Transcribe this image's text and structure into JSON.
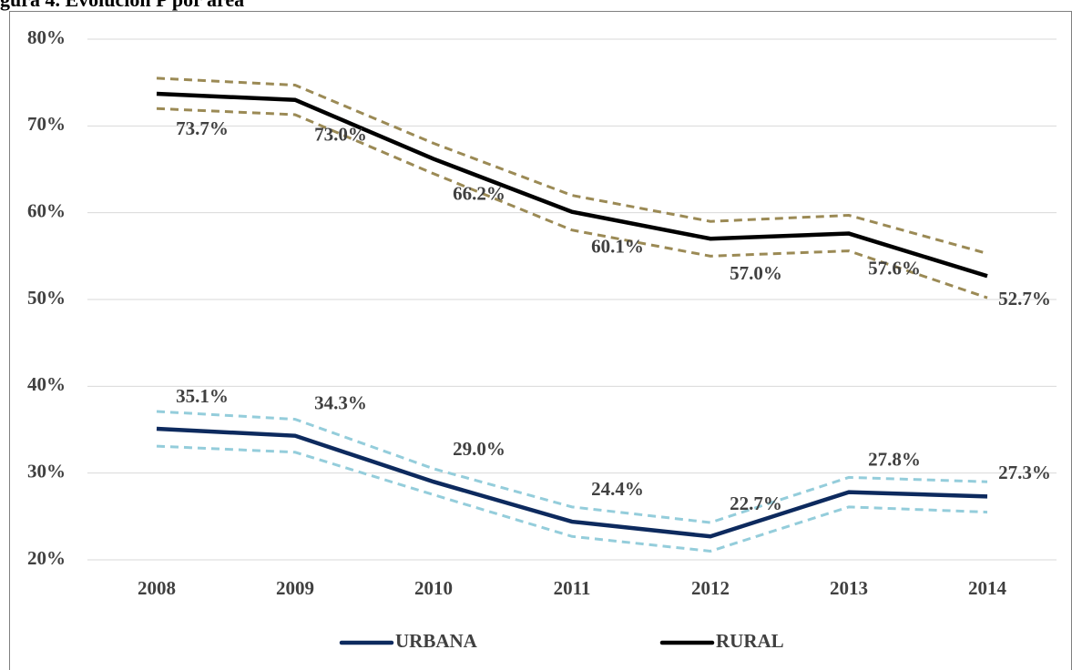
{
  "chart_data": {
    "type": "line",
    "title": "gura 4. Evolución P por área",
    "categories": [
      "2008",
      "2009",
      "2010",
      "2011",
      "2012",
      "2013",
      "2014"
    ],
    "series": [
      {
        "name": "URBANA",
        "color": "#0d2a5e",
        "band_color": "#94cddb",
        "values": [
          35.1,
          34.3,
          29.0,
          24.4,
          22.7,
          27.8,
          27.3
        ],
        "value_labels": [
          "35.1%",
          "34.3%",
          "29.0%",
          "24.4%",
          "22.7%",
          "27.8%",
          "27.3%"
        ],
        "upper": [
          37.1,
          36.2,
          30.5,
          26.1,
          24.3,
          29.5,
          29.0
        ],
        "lower": [
          33.1,
          32.4,
          27.5,
          22.7,
          21.0,
          26.1,
          25.5
        ],
        "label_side": "above"
      },
      {
        "name": "RURAL",
        "color": "#000000",
        "band_color": "#9b8a55",
        "values": [
          73.7,
          73.0,
          66.2,
          60.1,
          57.0,
          57.6,
          52.7
        ],
        "value_labels": [
          "73.7%",
          "73.0%",
          "66.2%",
          "60.1%",
          "57.0%",
          "57.6%",
          "52.7%"
        ],
        "upper": [
          75.5,
          74.7,
          68.0,
          62.0,
          59.0,
          59.7,
          55.3
        ],
        "lower": [
          72.0,
          71.3,
          64.5,
          58.0,
          55.0,
          55.6,
          50.2
        ],
        "label_side": "below"
      }
    ],
    "ylim": [
      20,
      80
    ],
    "yticks": [
      {
        "value": 20,
        "label": "20%"
      },
      {
        "value": 30,
        "label": "30%"
      },
      {
        "value": 40,
        "label": "40%"
      },
      {
        "value": 50,
        "label": "50%"
      },
      {
        "value": 60,
        "label": "60%"
      },
      {
        "value": 70,
        "label": "70%"
      },
      {
        "value": 80,
        "label": "80%"
      }
    ],
    "grid": true,
    "legend": "bottom"
  }
}
